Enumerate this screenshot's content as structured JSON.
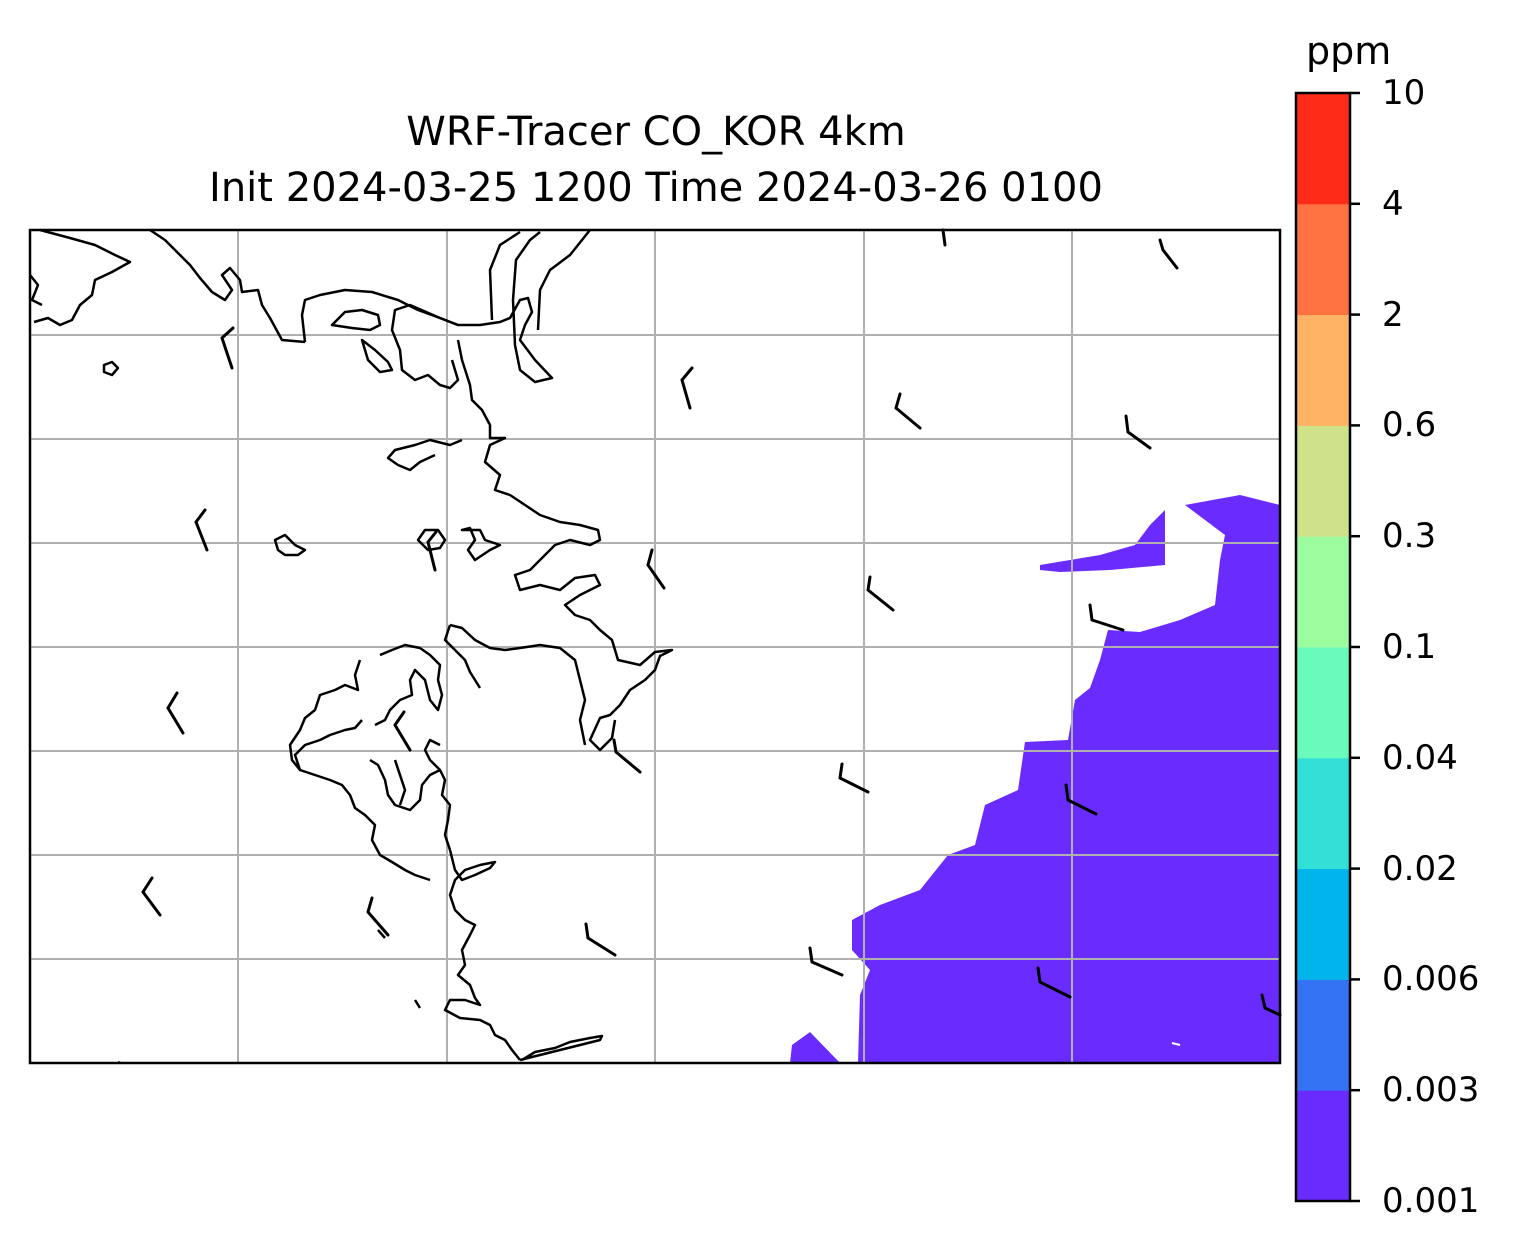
{
  "title_line1": "WRF-Tracer CO_KOR 4km",
  "title_line2": "Init 2024-03-25 1200 Time 2024-03-26 0100",
  "colorbar": {
    "unit": "ppm",
    "levels": [
      "0.001",
      "0.003",
      "0.006",
      "0.02",
      "0.04",
      "0.1",
      "0.3",
      "0.6",
      "2",
      "4",
      "10"
    ],
    "colors": [
      "#6a2bff",
      "#3473f4",
      "#01b5ec",
      "#33e0d7",
      "#69fbbc",
      "#9cfd9e",
      "#cfe289",
      "#feb365",
      "#fe7241",
      "#fe2b18"
    ]
  },
  "map": {
    "gridlines": true,
    "features": [
      "coastline",
      "wind-barbs",
      "co-concentration-fill"
    ],
    "filled_level_color": "#6a2bff"
  }
}
